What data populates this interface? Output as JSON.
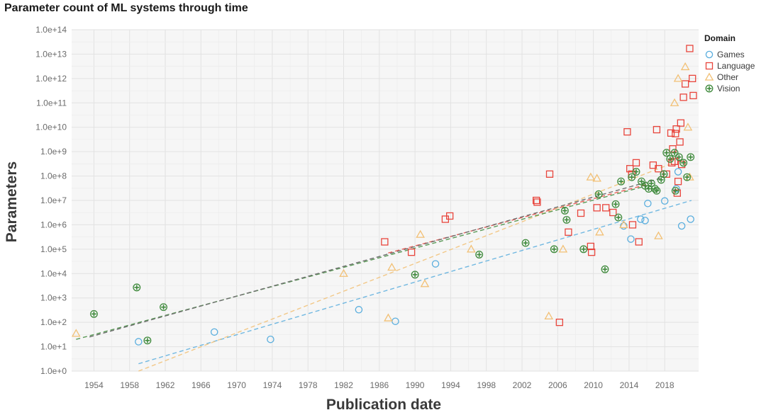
{
  "chart_data": {
    "type": "scatter",
    "title": "Parameter count of ML systems through time",
    "xlabel": "Publication date",
    "ylabel": "Parameters",
    "xlim": [
      1951.5,
      2021.8
    ],
    "ylim_log10": [
      0,
      14
    ],
    "yscale": "log",
    "grid": true,
    "x_ticks": [
      1954,
      1958,
      1962,
      1966,
      1970,
      1974,
      1978,
      1982,
      1986,
      1990,
      1994,
      1998,
      2002,
      2006,
      2010,
      2014,
      2018
    ],
    "x_tick_labels": [
      "1954",
      "1958",
      "1962",
      "1966",
      "1970",
      "1974",
      "1978",
      "1982",
      "1986",
      "1990",
      "1994",
      "1998",
      "2002",
      "2006",
      "2010",
      "2014",
      "2018"
    ],
    "y_tick_exponents": [
      0,
      1,
      2,
      3,
      4,
      5,
      6,
      7,
      8,
      9,
      10,
      11,
      12,
      13,
      14
    ],
    "y_tick_labels": [
      "1.0e+0",
      "1.0e+1",
      "1.0e+2",
      "1.0e+3",
      "1.0e+4",
      "1.0e+5",
      "1.0e+6",
      "1.0e+7",
      "1.0e+8",
      "1.0e+9",
      "1.0e+10",
      "1.0e+11",
      "1.0e+12",
      "1.0e+13",
      "1.0e+14"
    ],
    "legend": {
      "title": "Domain",
      "position": "top-right",
      "entries": [
        {
          "name": "Games",
          "color": "#5aaede",
          "marker": "circle"
        },
        {
          "name": "Language",
          "color": "#e8453c",
          "marker": "square"
        },
        {
          "name": "Other",
          "color": "#f2c075",
          "marker": "triangle"
        },
        {
          "name": "Vision",
          "color": "#3f8a3c",
          "marker": "cross"
        }
      ]
    },
    "series": [
      {
        "name": "Games",
        "color": "#5aaede",
        "marker": "circle",
        "points": [
          [
            1959,
            16
          ],
          [
            1967.5,
            40
          ],
          [
            1973.8,
            20
          ],
          [
            1983.7,
            330
          ],
          [
            1987.8,
            110
          ],
          [
            1992.3,
            25000
          ],
          [
            2013.4,
            900000
          ],
          [
            2014.2,
            260000
          ],
          [
            2015.3,
            1700000
          ],
          [
            2015.8,
            1500000
          ],
          [
            2016.1,
            7500000
          ],
          [
            2018,
            9500000
          ],
          [
            2019.3,
            30000000
          ],
          [
            2019.5,
            150000000
          ],
          [
            2019.9,
            900000
          ],
          [
            2020.9,
            1700000
          ]
        ],
        "trend": {
          "from": [
            1959,
            2
          ],
          "to": [
            2021,
            10000000
          ],
          "dash": true
        }
      },
      {
        "name": "Language",
        "color": "#e8453c",
        "marker": "square",
        "points": [
          [
            1986.6,
            200000
          ],
          [
            1989.6,
            75000
          ],
          [
            1993.4,
            1700000
          ],
          [
            1993.9,
            2300000
          ],
          [
            2003.6,
            10000000
          ],
          [
            2003.7,
            8500000
          ],
          [
            2005.1,
            120000000
          ],
          [
            2006.2,
            100
          ],
          [
            2007.2,
            500000
          ],
          [
            2008.6,
            3000000
          ],
          [
            2009.7,
            130000
          ],
          [
            2009.8,
            75000
          ],
          [
            2010.4,
            5000000
          ],
          [
            2011.4,
            5000000
          ],
          [
            2012.2,
            3200000
          ],
          [
            2013.8,
            6500000000
          ],
          [
            2014.1,
            200000000
          ],
          [
            2014.3,
            120000000
          ],
          [
            2014.4,
            1000000
          ],
          [
            2014.8,
            350000000
          ],
          [
            2015.1,
            200000
          ],
          [
            2016.7,
            280000000
          ],
          [
            2017.1,
            8000000000
          ],
          [
            2017.3,
            200000000
          ],
          [
            2018.2,
            120000000
          ],
          [
            2018.7,
            5800000000
          ],
          [
            2018.8,
            350000000
          ],
          [
            2018.9,
            1300000000
          ],
          [
            2019.1,
            400000000
          ],
          [
            2019.2,
            5500000000
          ],
          [
            2019.3,
            8500000000
          ],
          [
            2019.4,
            20000000
          ],
          [
            2019.5,
            60000000
          ],
          [
            2019.7,
            2500000000
          ],
          [
            2019.8,
            15000000000
          ],
          [
            2019.9,
            300000000
          ],
          [
            2020.1,
            170000000000
          ],
          [
            2020.3,
            600000000000
          ],
          [
            2020.8,
            17000000000000
          ],
          [
            2021.1,
            1000000000000
          ],
          [
            2021.2,
            200000000000
          ]
        ],
        "trend": {
          "from": [
            1987,
            70000
          ],
          "to": [
            2016,
            45000000
          ],
          "dash": true
        }
      },
      {
        "name": "Other",
        "color": "#f2c075",
        "marker": "triangle",
        "points": [
          [
            1952,
            35
          ],
          [
            1982,
            10000
          ],
          [
            1987,
            150
          ],
          [
            1987.4,
            18000
          ],
          [
            1990.6,
            400000
          ],
          [
            1991.1,
            3800
          ],
          [
            1996.3,
            100000
          ],
          [
            2005,
            180
          ],
          [
            2006.6,
            100000
          ],
          [
            2009.7,
            90000000
          ],
          [
            2010.4,
            80000000
          ],
          [
            2010.7,
            500000
          ],
          [
            2013.4,
            1000000
          ],
          [
            2017.3,
            350000
          ],
          [
            2019.1,
            100000000000
          ],
          [
            2019.5,
            1000000000000
          ],
          [
            2020.3,
            3000000000000
          ],
          [
            2020.6,
            10000000000
          ],
          [
            2020.8,
            90000000
          ]
        ],
        "trend": {
          "from": [
            1959,
            1
          ],
          "to": [
            2019,
            350000000
          ],
          "dash": true
        }
      },
      {
        "name": "Vision",
        "color": "#3f8a3c",
        "marker": "cross",
        "points": [
          [
            1954,
            220
          ],
          [
            1958.8,
            2700
          ],
          [
            1960,
            18
          ],
          [
            1961.8,
            420
          ],
          [
            1990,
            9000
          ],
          [
            1997.2,
            60000
          ],
          [
            2002.4,
            180000
          ],
          [
            2005.6,
            100000
          ],
          [
            2006.8,
            3800000
          ],
          [
            2007,
            1600000
          ],
          [
            2008.9,
            100000
          ],
          [
            2010.6,
            18000000
          ],
          [
            2011.3,
            15000
          ],
          [
            2012.5,
            7000000
          ],
          [
            2012.8,
            2000000
          ],
          [
            2013.1,
            60000000
          ],
          [
            2014.3,
            90000000
          ],
          [
            2014.8,
            150000000
          ],
          [
            2015.4,
            60000000
          ],
          [
            2015.8,
            40000000
          ],
          [
            2016.2,
            30000000
          ],
          [
            2016.5,
            50000000
          ],
          [
            2016.9,
            30000000
          ],
          [
            2017.1,
            25000000
          ],
          [
            2017.6,
            70000000
          ],
          [
            2017.9,
            120000000
          ],
          [
            2018.2,
            900000000
          ],
          [
            2018.6,
            500000000
          ],
          [
            2019.1,
            900000000
          ],
          [
            2019.2,
            25000000
          ],
          [
            2019.6,
            600000000
          ],
          [
            2020.1,
            350000000
          ],
          [
            2020.5,
            90000000
          ],
          [
            2020.9,
            600000000
          ]
        ],
        "trend": {
          "from": [
            1952,
            20
          ],
          "to": [
            2016,
            40000000
          ],
          "dash": true
        }
      }
    ]
  }
}
